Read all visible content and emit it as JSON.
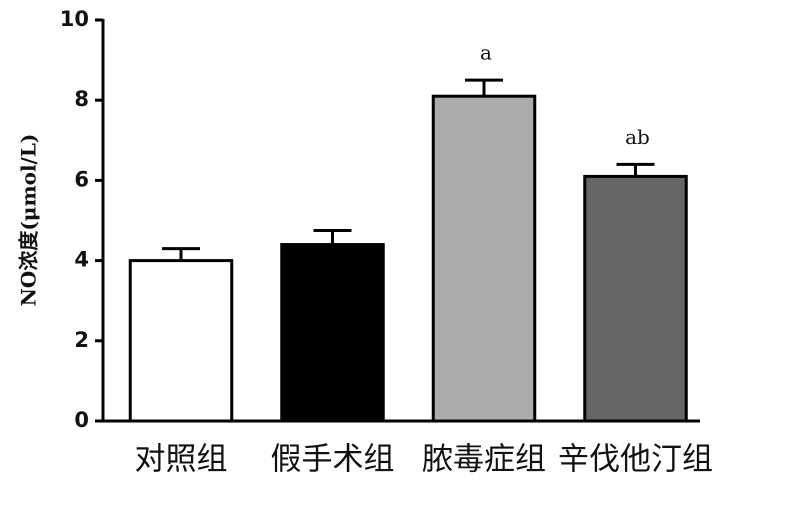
{
  "chart_data": {
    "type": "bar",
    "y_label": "NO浓度(μmol/L)",
    "categories": [
      "对照组",
      "假手术组",
      "脓毒症组",
      "辛伐他汀组"
    ],
    "values": [
      4.0,
      4.4,
      8.1,
      6.1
    ],
    "errors": [
      0.3,
      0.35,
      0.4,
      0.3
    ],
    "value_annotations": [
      null,
      null,
      "a",
      "ab"
    ],
    "colors": [
      "#ffffff",
      "#000000",
      "#acacac",
      "#666666"
    ],
    "ylim": [
      0,
      10
    ],
    "yticks": [
      0,
      2,
      4,
      6,
      8,
      10
    ],
    "grid": false
  }
}
